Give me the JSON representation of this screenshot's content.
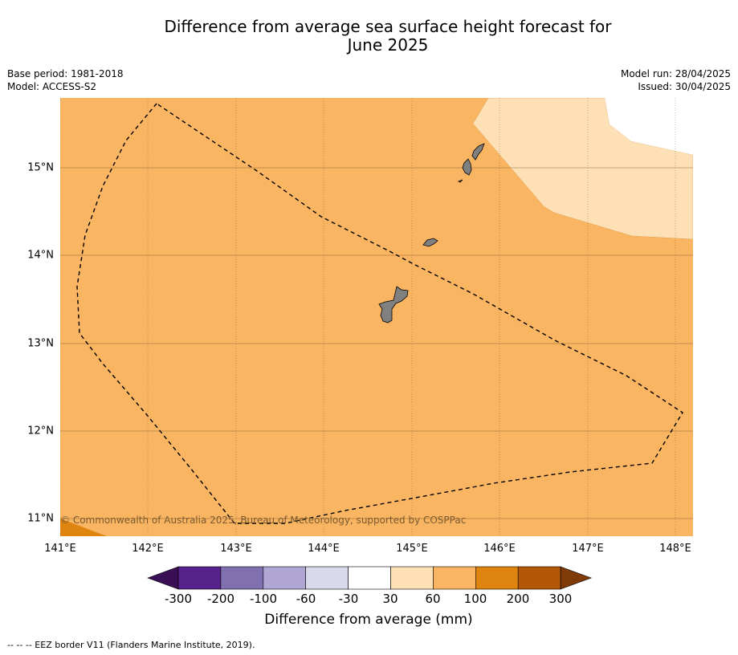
{
  "title_line1": "Difference from average sea surface height forecast for",
  "title_line2": "June 2025",
  "base_period": "Base period: 1981-2018",
  "model": "Model: ACCESS-S2",
  "model_run": "Model run: 28/04/2025",
  "issued": "Issued: 30/04/2025",
  "latitudes": [
    "15°N",
    "14°N",
    "13°N",
    "12°N",
    "11°N"
  ],
  "longitudes": [
    "141°E",
    "142°E",
    "143°E",
    "144°E",
    "145°E",
    "146°E",
    "147°E",
    "148°E"
  ],
  "copyright": "© Commonwealth of Australia 2025, Bureau of Meteorology, supported by COSPPac",
  "colorbar": {
    "labels": [
      "-300",
      "-200",
      "-100",
      "-60",
      "-30",
      "30",
      "60",
      "100",
      "200",
      "300"
    ],
    "colors": [
      "#3b0f55",
      "#55218a",
      "#8170b0",
      "#b0a6d2",
      "#d8daec",
      "#ffffff",
      "#fde0b5",
      "#fab562",
      "#e08410",
      "#b35807",
      "#7e3b08"
    ],
    "title": "Difference from average (mm)"
  },
  "footer": "--  --  -- EEZ border V11 (Flanders Marine Institute, 2019).",
  "map_colors": {
    "base": "#fab562",
    "light": "#fde0b5",
    "dark": "#e08410",
    "land": "#808080"
  }
}
